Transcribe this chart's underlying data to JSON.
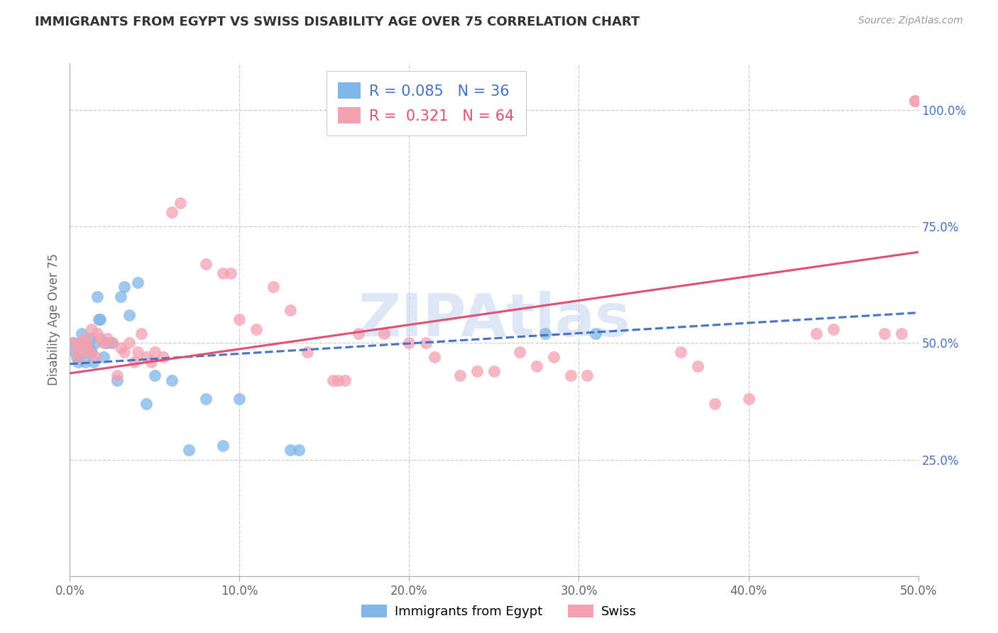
{
  "title": "IMMIGRANTS FROM EGYPT VS SWISS DISABILITY AGE OVER 75 CORRELATION CHART",
  "source": "Source: ZipAtlas.com",
  "ylabel": "Disability Age Over 75",
  "xlim": [
    0.0,
    0.5
  ],
  "ylim": [
    0.0,
    1.1
  ],
  "xtick_labels": [
    "0.0%",
    "10.0%",
    "20.0%",
    "30.0%",
    "40.0%",
    "50.0%"
  ],
  "xtick_vals": [
    0.0,
    0.1,
    0.2,
    0.3,
    0.4,
    0.5
  ],
  "ytick_labels_right": [
    "25.0%",
    "50.0%",
    "75.0%",
    "100.0%"
  ],
  "ytick_vals_right": [
    0.25,
    0.5,
    0.75,
    1.0
  ],
  "hline_vals": [
    0.25,
    0.5,
    0.75,
    1.0
  ],
  "vline_vals": [
    0.1,
    0.2,
    0.3,
    0.4
  ],
  "blue_color": "#7EB6E8",
  "pink_color": "#F4A0B0",
  "trend_blue_color": "#4472C4",
  "trend_pink_color": "#E05070",
  "legend_R_blue": "0.085",
  "legend_N_blue": "36",
  "legend_R_pink": "0.321",
  "legend_N_pink": "64",
  "legend_label_blue": "Immigrants from Egypt",
  "legend_label_pink": "Swiss",
  "watermark": "ZIPAtlas",
  "watermark_color": "#C8D8F0",
  "blue_line_x0": 0.0,
  "blue_line_y0": 0.455,
  "blue_line_x1": 0.5,
  "blue_line_y1": 0.565,
  "pink_line_x0": 0.0,
  "pink_line_y0": 0.435,
  "pink_line_x1": 0.5,
  "pink_line_y1": 0.695,
  "blue_x": [
    0.002,
    0.003,
    0.004,
    0.005,
    0.006,
    0.007,
    0.008,
    0.009,
    0.01,
    0.011,
    0.012,
    0.013,
    0.014,
    0.015,
    0.016,
    0.017,
    0.018,
    0.02,
    0.022,
    0.025,
    0.028,
    0.03,
    0.032,
    0.035,
    0.04,
    0.045,
    0.05,
    0.06,
    0.07,
    0.08,
    0.09,
    0.1,
    0.13,
    0.135,
    0.28,
    0.31
  ],
  "blue_y": [
    0.5,
    0.48,
    0.47,
    0.46,
    0.5,
    0.52,
    0.48,
    0.46,
    0.5,
    0.49,
    0.51,
    0.48,
    0.46,
    0.5,
    0.6,
    0.55,
    0.55,
    0.47,
    0.5,
    0.5,
    0.42,
    0.6,
    0.62,
    0.56,
    0.63,
    0.37,
    0.43,
    0.42,
    0.27,
    0.38,
    0.28,
    0.38,
    0.27,
    0.27,
    0.52,
    0.52
  ],
  "pink_x": [
    0.002,
    0.004,
    0.005,
    0.006,
    0.007,
    0.008,
    0.009,
    0.01,
    0.011,
    0.012,
    0.013,
    0.015,
    0.016,
    0.018,
    0.02,
    0.022,
    0.025,
    0.028,
    0.03,
    0.032,
    0.035,
    0.038,
    0.04,
    0.042,
    0.045,
    0.048,
    0.05,
    0.055,
    0.06,
    0.065,
    0.08,
    0.09,
    0.095,
    0.1,
    0.11,
    0.12,
    0.13,
    0.14,
    0.155,
    0.158,
    0.162,
    0.17,
    0.185,
    0.2,
    0.21,
    0.215,
    0.23,
    0.24,
    0.25,
    0.265,
    0.275,
    0.285,
    0.295,
    0.305,
    0.36,
    0.37,
    0.38,
    0.4,
    0.44,
    0.45,
    0.48,
    0.49,
    0.498,
    0.498
  ],
  "pink_y": [
    0.5,
    0.48,
    0.47,
    0.5,
    0.5,
    0.49,
    0.51,
    0.5,
    0.48,
    0.48,
    0.53,
    0.47,
    0.52,
    0.51,
    0.5,
    0.51,
    0.5,
    0.43,
    0.49,
    0.48,
    0.5,
    0.46,
    0.48,
    0.52,
    0.47,
    0.46,
    0.48,
    0.47,
    0.78,
    0.8,
    0.67,
    0.65,
    0.65,
    0.55,
    0.53,
    0.62,
    0.57,
    0.48,
    0.42,
    0.42,
    0.42,
    0.52,
    0.52,
    0.5,
    0.5,
    0.47,
    0.43,
    0.44,
    0.44,
    0.48,
    0.45,
    0.47,
    0.43,
    0.43,
    0.48,
    0.45,
    0.37,
    0.38,
    0.52,
    0.53,
    0.52,
    0.52,
    1.02,
    1.02
  ]
}
